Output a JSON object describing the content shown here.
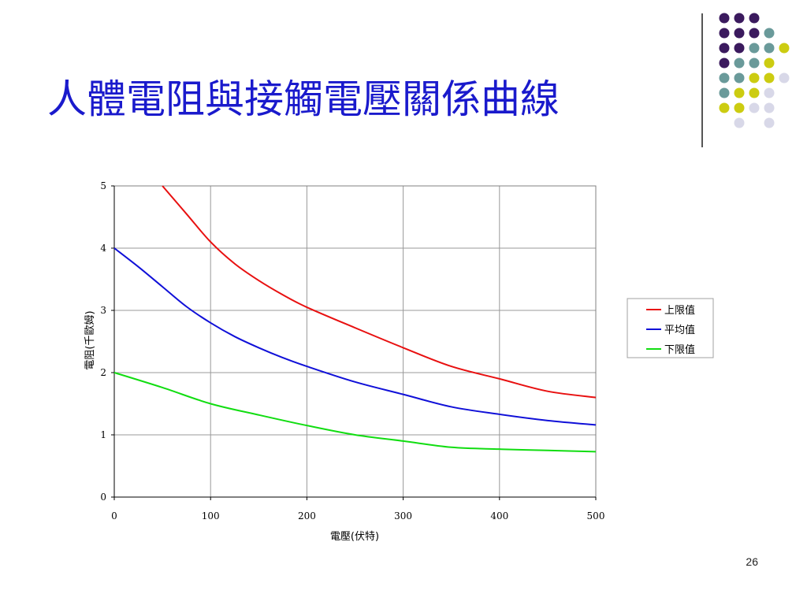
{
  "slide": {
    "title": "人體電阻與接觸電壓關係曲線",
    "page_number": "26"
  },
  "decoration": {
    "dot_colors": {
      "purple": "#3b1a5e",
      "teal": "#6a9a9a",
      "yellow": "#cccc11",
      "lavender": "#d8d8e8"
    },
    "dot_rows": [
      [
        "purple",
        "purple",
        "purple",
        null,
        null
      ],
      [
        "purple",
        "purple",
        "purple",
        "teal",
        null
      ],
      [
        "purple",
        "purple",
        "teal",
        "teal",
        "yellow"
      ],
      [
        "purple",
        "teal",
        "teal",
        "yellow",
        null
      ],
      [
        "teal",
        "teal",
        "yellow",
        "yellow",
        "lavender"
      ],
      [
        "teal",
        "yellow",
        "yellow",
        "lavender",
        null
      ],
      [
        "yellow",
        "yellow",
        "lavender",
        "lavender",
        null
      ],
      [
        null,
        "lavender",
        null,
        "lavender",
        null
      ]
    ]
  },
  "chart_data": {
    "type": "line",
    "xlabel": "電壓(伏特)",
    "ylabel": "電阻(千歐姆)",
    "xlim": [
      0,
      500
    ],
    "ylim": [
      0,
      5
    ],
    "xticks": [
      0,
      100,
      200,
      300,
      400,
      500
    ],
    "yticks": [
      0,
      1,
      2,
      3,
      4,
      5
    ],
    "grid": true,
    "legend_position": "right",
    "series": [
      {
        "name": "上限值",
        "color": "#e81010",
        "x": [
          50,
          75,
          100,
          125,
          150,
          175,
          200,
          250,
          300,
          350,
          400,
          450,
          500
        ],
        "y": [
          5.0,
          4.55,
          4.1,
          3.75,
          3.48,
          3.25,
          3.05,
          2.72,
          2.4,
          2.1,
          1.9,
          1.7,
          1.6
        ]
      },
      {
        "name": "平均值",
        "color": "#1010d8",
        "x": [
          0,
          25,
          50,
          75,
          100,
          125,
          150,
          175,
          200,
          250,
          300,
          350,
          400,
          450,
          500
        ],
        "y": [
          4.0,
          3.7,
          3.38,
          3.06,
          2.8,
          2.58,
          2.4,
          2.24,
          2.1,
          1.85,
          1.65,
          1.45,
          1.33,
          1.23,
          1.16
        ]
      },
      {
        "name": "下限值",
        "color": "#11dd11",
        "x": [
          0,
          50,
          100,
          150,
          200,
          250,
          300,
          350,
          400,
          450,
          500
        ],
        "y": [
          2.0,
          1.76,
          1.5,
          1.32,
          1.15,
          1.0,
          0.9,
          0.8,
          0.77,
          0.75,
          0.73
        ]
      }
    ]
  }
}
